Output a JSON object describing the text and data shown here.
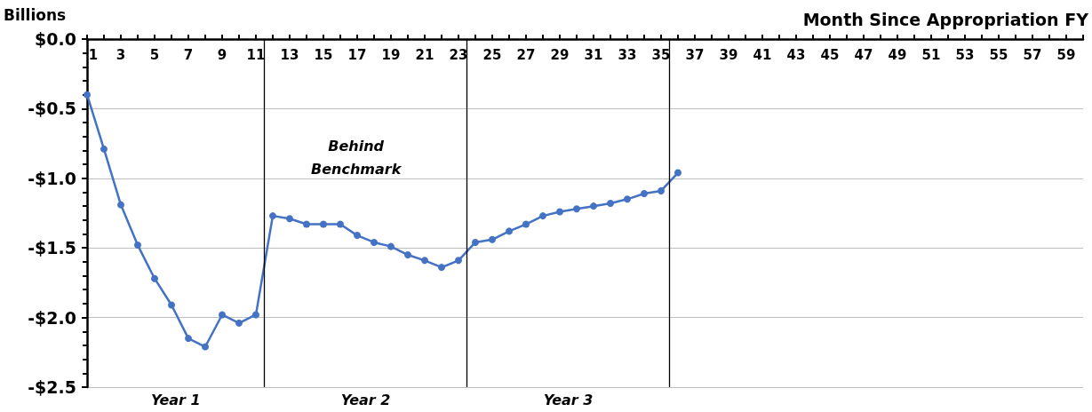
{
  "chart_data": {
    "type": "line",
    "xlabel": "Month Since Appropriation FY",
    "ylabel": "Billions",
    "x": [
      1,
      2,
      3,
      4,
      5,
      6,
      7,
      8,
      9,
      10,
      11,
      12,
      13,
      14,
      15,
      16,
      17,
      18,
      19,
      20,
      21,
      22,
      23,
      24,
      25,
      26,
      27,
      28,
      29,
      30,
      31,
      32,
      33,
      34,
      35,
      36
    ],
    "series": [
      {
        "color": "#4472c4",
        "values": [
          -0.4,
          -0.79,
          -1.19,
          -1.48,
          -1.72,
          -1.91,
          -2.15,
          -2.21,
          -1.98,
          -2.04,
          -1.98,
          -1.27,
          -1.29,
          -1.33,
          -1.33,
          -1.33,
          -1.41,
          -1.46,
          -1.49,
          -1.55,
          -1.59,
          -1.64,
          -1.59,
          -1.46,
          -1.44,
          -1.38,
          -1.33,
          -1.27,
          -1.24,
          -1.22,
          -1.2,
          -1.18,
          -1.15,
          -1.11,
          -1.09,
          -0.96
        ]
      }
    ],
    "xlim": [
      1,
      60
    ],
    "xticks": [
      1,
      {
        "value": 2,
        "label": null
      },
      3,
      {
        "value": 4,
        "label": null
      },
      5,
      {
        "value": 6,
        "label": null
      },
      7,
      {
        "value": 8,
        "label": null
      },
      9,
      {
        "value": 10,
        "label": null
      },
      11,
      {
        "value": 12,
        "label": null
      },
      13,
      {
        "value": 14,
        "label": null
      },
      15,
      {
        "value": 16,
        "label": null
      },
      17,
      {
        "value": 18,
        "label": null
      },
      19,
      {
        "value": 20,
        "label": null
      },
      21,
      {
        "value": 22,
        "label": null
      },
      23,
      {
        "value": 24,
        "label": null
      },
      25,
      {
        "value": 26,
        "label": null
      },
      27,
      {
        "value": 28,
        "label": null
      },
      29,
      {
        "value": 30,
        "label": null
      },
      31,
      {
        "value": 32,
        "label": null
      },
      33,
      {
        "value": 34,
        "label": null
      },
      35,
      {
        "value": 36,
        "label": null
      },
      37,
      {
        "value": 38,
        "label": null
      },
      39,
      {
        "value": 40,
        "label": null
      },
      41,
      {
        "value": 42,
        "label": null
      },
      43,
      {
        "value": 44,
        "label": null
      },
      45,
      {
        "value": 46,
        "label": null
      },
      47,
      {
        "value": 48,
        "label": null
      },
      49,
      {
        "value": 50,
        "label": null
      },
      51,
      {
        "value": 52,
        "label": null
      },
      53,
      {
        "value": 54,
        "label": null
      },
      55,
      {
        "value": 56,
        "label": null
      },
      57,
      {
        "value": 58,
        "label": null
      },
      59,
      {
        "value": 60,
        "label": null
      }
    ],
    "ylim": [
      -2.5,
      0
    ],
    "yticks": [
      {
        "value": 0,
        "label": "$0.0"
      },
      {
        "value": -0.5,
        "label": "-$0.5"
      },
      {
        "value": -1,
        "label": "-$1.0"
      },
      {
        "value": -1.5,
        "label": "-$1.5"
      },
      {
        "value": -2,
        "label": "-$2.0"
      },
      {
        "value": -2.5,
        "label": "-$2.5"
      }
    ],
    "grid": "y",
    "marker": "circle",
    "line_style": "solid",
    "ref_lines": [
      {
        "axis": "x",
        "value": 11.5,
        "color": "#000000"
      },
      {
        "axis": "x",
        "value": 23.5,
        "color": "#000000"
      },
      {
        "axis": "x",
        "value": 35.5,
        "color": "#000000"
      }
    ],
    "annotations": [
      "Behind Benchmark",
      "Year 1",
      "Year 2",
      "Year 3"
    ]
  }
}
